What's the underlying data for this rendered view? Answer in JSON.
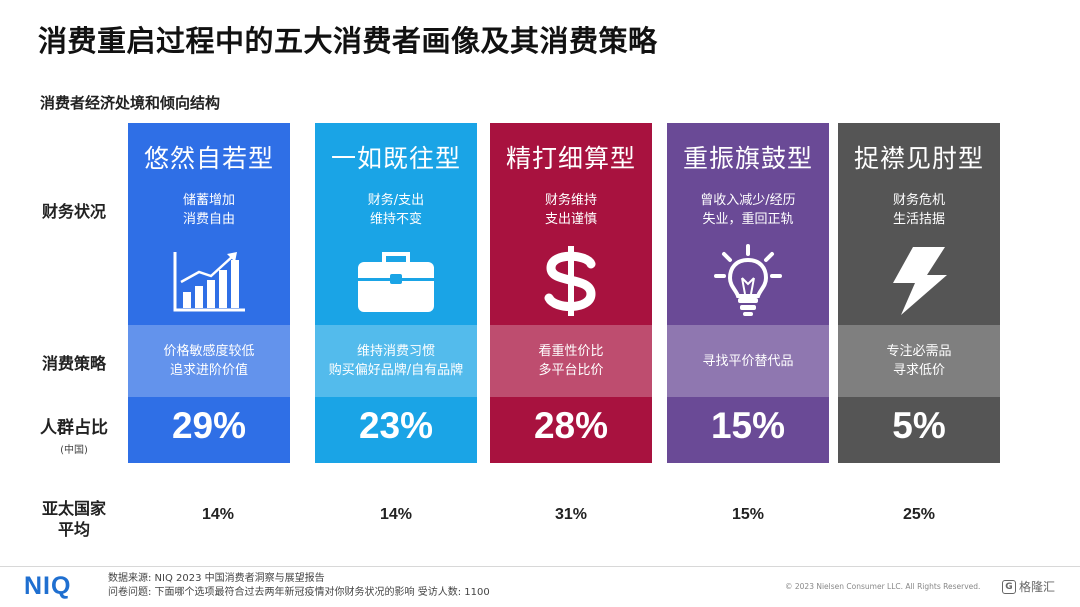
{
  "title": "消费重启过程中的五大消费者画像及其消费策略",
  "subtitle": "消费者经济处境和倾向结构",
  "row_labels": {
    "finance": "财务状况",
    "strategy": "消费策略",
    "share": "人群占比",
    "share_sub": "(中国)",
    "apac_line1": "亚太国家",
    "apac_line2": "平均"
  },
  "segments": [
    {
      "name": "悠然自若型",
      "fin1": "储蓄增加",
      "fin2": "消费自由",
      "icon": "growth-chart-icon",
      "strat1": "价格敏感度较低",
      "strat2": "追求进阶价值",
      "share": "29%",
      "apac": "14%",
      "color": "#2f6fe6"
    },
    {
      "name": "一如既往型",
      "fin1": "财务/支出",
      "fin2": "维持不变",
      "icon": "briefcase-icon",
      "strat1": "维持消费习惯",
      "strat2": "购买偏好品牌/自有品牌",
      "share": "23%",
      "apac": "14%",
      "color": "#1aa4e6"
    },
    {
      "name": "精打细算型",
      "fin1": "财务维持",
      "fin2": "支出谨慎",
      "icon": "dollar-icon",
      "strat1": "看重性价比",
      "strat2": "多平台比价",
      "share": "28%",
      "apac": "31%",
      "color": "#a8123f"
    },
    {
      "name": "重振旗鼓型",
      "fin1": "曾收入减少/经历",
      "fin2": "失业，重回正轨",
      "icon": "lightbulb-icon",
      "strat1": "寻找平价替代品",
      "strat2": "",
      "share": "15%",
      "apac": "15%",
      "color": "#6a4a96"
    },
    {
      "name": "捉襟见肘型",
      "fin1": "财务危机",
      "fin2": "生活拮据",
      "icon": "lightning-icon",
      "strat1": "专注必需品",
      "strat2": "寻求低价",
      "share": "5%",
      "apac": "25%",
      "color": "#555555"
    }
  ],
  "footer": {
    "logo": "NIQ",
    "source_line1": "数据来源: NIQ 2023 中国消费者洞察与展望报告",
    "source_line2": "问卷问题: 下面哪个选项最符合过去两年新冠疫情对你财务状况的影响 受访人数: 1100",
    "copyright": "© 2023 Nielsen Consumer LLC. All Rights Reserved.",
    "watermark_letter": "G",
    "watermark": "格隆汇"
  }
}
